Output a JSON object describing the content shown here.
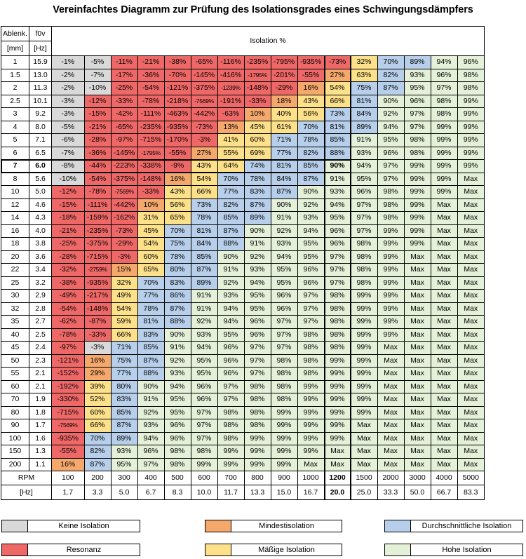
{
  "title": "Vereinfachtes Diagramm zur Prüfung des Isolationsgrades eines Schwingungsdämpfers",
  "colors": {
    "grey": "#d9d9d9",
    "red": "#ef6868",
    "orange": "#f4a86c",
    "yellow": "#fde08a",
    "blue": "#b7cfea",
    "green": "#e4f0d8",
    "white": "#ffffff"
  },
  "header": {
    "col1_top": "Ablenk.",
    "col1_bottom": "[mm]",
    "col2_top": "f0v",
    "col2_bottom": "[Hz]",
    "isolation_label": "Isolation %"
  },
  "footer": {
    "rpm_label": "RPM",
    "hz_label": "[Hz]",
    "rpm": [
      "100",
      "200",
      "300",
      "400",
      "500",
      "600",
      "700",
      "800",
      "900",
      "1000",
      "1200",
      "1500",
      "2000",
      "3000",
      "4000",
      "5000"
    ],
    "hz": [
      "1.7",
      "3.3",
      "5.0",
      "6.7",
      "8.3",
      "10.0",
      "11.7",
      "13.3",
      "15.0",
      "16.7",
      "20.0",
      "25.0",
      "33.3",
      "50.0",
      "66.7",
      "83.3"
    ]
  },
  "legend": [
    {
      "label": "Keine Isolation",
      "color": "grey"
    },
    {
      "label": "Mindestisolation",
      "color": "orange"
    },
    {
      "label": "Durchschnittliche Isolation",
      "color": "blue"
    },
    {
      "label": "Resonanz",
      "color": "red"
    },
    {
      "label": "Mäßige Isolation",
      "color": "yellow"
    },
    {
      "label": "Hohe Isolation",
      "color": "green"
    }
  ],
  "chart_data": {
    "type": "table",
    "highlight_row": "7",
    "highlight_col": "1200",
    "rows": [
      {
        "defl": "1",
        "f0v": "15.9",
        "vals": [
          "-1%",
          "-5%",
          "-11%",
          "-21%",
          "-38%",
          "-65%",
          "-116%",
          "-235%",
          "-795%",
          "-935%",
          "-73%",
          "32%",
          "70%",
          "89%",
          "94%",
          "96%"
        ]
      },
      {
        "defl": "1.5",
        "f0v": "13.0",
        "vals": [
          "-2%",
          "-7%",
          "-17%",
          "-36%",
          "-70%",
          "-145%",
          "-416%",
          "-1795%",
          "-201%",
          "-55%",
          "27%",
          "63%",
          "82%",
          "93%",
          "96%",
          "98%"
        ]
      },
      {
        "defl": "2",
        "f0v": "11.3",
        "vals": [
          "-2%",
          "-10%",
          "-25%",
          "-54%",
          "-121%",
          "-375%",
          "-1239%",
          "-148%",
          "-29%",
          "16%",
          "54%",
          "75%",
          "87%",
          "95%",
          "97%",
          "98%"
        ]
      },
      {
        "defl": "2.5",
        "f0v": "10.1",
        "vals": [
          "-3%",
          "-12%",
          "-33%",
          "-78%",
          "-218%",
          "-7569%",
          "-191%",
          "-33%",
          "18%",
          "43%",
          "66%",
          "81%",
          "90%",
          "96%",
          "98%",
          "99%"
        ]
      },
      {
        "defl": "3",
        "f0v": "9.2",
        "vals": [
          "-3%",
          "-15%",
          "-42%",
          "-111%",
          "-463%",
          "-442%",
          "-63%",
          "10%",
          "40%",
          "56%",
          "73%",
          "84%",
          "92%",
          "97%",
          "98%",
          "99%"
        ]
      },
      {
        "defl": "4",
        "f0v": "8.0",
        "vals": [
          "-5%",
          "-21%",
          "-65%",
          "-235%",
          "-935%",
          "-73%",
          "13%",
          "45%",
          "61%",
          "70%",
          "81%",
          "89%",
          "94%",
          "97%",
          "99%",
          "99%"
        ]
      },
      {
        "defl": "5",
        "f0v": "7.1",
        "vals": [
          "-6%",
          "-28%",
          "-97%",
          "-715%",
          "-170%",
          "-3%",
          "41%",
          "60%",
          "71%",
          "78%",
          "85%",
          "91%",
          "95%",
          "98%",
          "99%",
          "99%"
        ]
      },
      {
        "defl": "6",
        "f0v": "6.5",
        "vals": [
          "-7%",
          "-36%",
          "-145%",
          "-1795%",
          "-55%",
          "27%",
          "55%",
          "69%",
          "77%",
          "82%",
          "88%",
          "93%",
          "96%",
          "98%",
          "99%",
          "99%"
        ]
      },
      {
        "defl": "7",
        "f0v": "6.0",
        "vals": [
          "-8%",
          "-44%",
          "-223%",
          "-338%",
          "-9%",
          "43%",
          "64%",
          "74%",
          "81%",
          "85%",
          "90%",
          "94%",
          "97%",
          "99%",
          "99%",
          "99%"
        ]
      },
      {
        "defl": "8",
        "f0v": "5.6",
        "vals": [
          "-10%",
          "-54%",
          "-375%",
          "-148%",
          "16%",
          "54%",
          "70%",
          "78%",
          "84%",
          "87%",
          "91%",
          "95%",
          "97%",
          "99%",
          "99%",
          "Max"
        ]
      },
      {
        "defl": "10",
        "f0v": "5.0",
        "vals": [
          "-12%",
          "-78%",
          "-7569%",
          "-33%",
          "43%",
          "66%",
          "77%",
          "83%",
          "87%",
          "90%",
          "93%",
          "96%",
          "98%",
          "99%",
          "99%",
          "Max"
        ]
      },
      {
        "defl": "12",
        "f0v": "4.6",
        "vals": [
          "-15%",
          "-111%",
          "-442%",
          "10%",
          "56%",
          "73%",
          "82%",
          "87%",
          "90%",
          "92%",
          "94%",
          "97%",
          "98%",
          "99%",
          "Max",
          "Max"
        ]
      },
      {
        "defl": "14",
        "f0v": "4.3",
        "vals": [
          "-18%",
          "-159%",
          "-162%",
          "31%",
          "65%",
          "78%",
          "85%",
          "89%",
          "91%",
          "93%",
          "95%",
          "97%",
          "98%",
          "99%",
          "Max",
          "Max"
        ]
      },
      {
        "defl": "16",
        "f0v": "4.0",
        "vals": [
          "-21%",
          "-235%",
          "-73%",
          "45%",
          "70%",
          "81%",
          "87%",
          "90%",
          "92%",
          "94%",
          "96%",
          "97%",
          "99%",
          "99%",
          "Max",
          "Max"
        ]
      },
      {
        "defl": "18",
        "f0v": "3.8",
        "vals": [
          "-25%",
          "-375%",
          "-29%",
          "54%",
          "75%",
          "84%",
          "88%",
          "91%",
          "93%",
          "95%",
          "96%",
          "98%",
          "99%",
          "99%",
          "Max",
          "Max"
        ]
      },
      {
        "defl": "20",
        "f0v": "3.6",
        "vals": [
          "-28%",
          "-715%",
          "-3%",
          "60%",
          "78%",
          "85%",
          "90%",
          "92%",
          "94%",
          "95%",
          "97%",
          "98%",
          "99%",
          "Max",
          "Max",
          "Max"
        ]
      },
      {
        "defl": "22",
        "f0v": "3.4",
        "vals": [
          "-32%",
          "-2759%",
          "15%",
          "65%",
          "80%",
          "87%",
          "91%",
          "93%",
          "95%",
          "96%",
          "97%",
          "98%",
          "99%",
          "Max",
          "Max",
          "Max"
        ]
      },
      {
        "defl": "25",
        "f0v": "3.2",
        "vals": [
          "-38%",
          "-935%",
          "32%",
          "70%",
          "83%",
          "89%",
          "92%",
          "94%",
          "95%",
          "96%",
          "97%",
          "98%",
          "99%",
          "Max",
          "Max",
          "Max"
        ]
      },
      {
        "defl": "30",
        "f0v": "2.9",
        "vals": [
          "-49%",
          "-217%",
          "49%",
          "77%",
          "86%",
          "91%",
          "93%",
          "95%",
          "96%",
          "97%",
          "98%",
          "99%",
          "99%",
          "Max",
          "Max",
          "Max"
        ]
      },
      {
        "defl": "32",
        "f0v": "2.8",
        "vals": [
          "-54%",
          "-148%",
          "54%",
          "78%",
          "87%",
          "91%",
          "94%",
          "95%",
          "96%",
          "97%",
          "98%",
          "99%",
          "99%",
          "Max",
          "Max",
          "Max"
        ]
      },
      {
        "defl": "35",
        "f0v": "2.7",
        "vals": [
          "-62%",
          "-87%",
          "59%",
          "81%",
          "88%",
          "92%",
          "94%",
          "96%",
          "97%",
          "97%",
          "98%",
          "99%",
          "99%",
          "Max",
          "Max",
          "Max"
        ]
      },
      {
        "defl": "40",
        "f0v": "2.5",
        "vals": [
          "-78%",
          "-33%",
          "66%",
          "83%",
          "90%",
          "93%",
          "95%",
          "96%",
          "97%",
          "98%",
          "98%",
          "99%",
          "99%",
          "Max",
          "Max",
          "Max"
        ]
      },
      {
        "defl": "45",
        "f0v": "2.4",
        "vals": [
          "-97%",
          "-3%",
          "71%",
          "85%",
          "91%",
          "94%",
          "96%",
          "97%",
          "97%",
          "98%",
          "98%",
          "99%",
          "Max",
          "Max",
          "Max",
          "Max"
        ]
      },
      {
        "defl": "50",
        "f0v": "2.3",
        "vals": [
          "-121%",
          "16%",
          "75%",
          "87%",
          "92%",
          "95%",
          "96%",
          "97%",
          "98%",
          "98%",
          "99%",
          "99%",
          "Max",
          "Max",
          "Max",
          "Max"
        ]
      },
      {
        "defl": "55",
        "f0v": "2.1",
        "vals": [
          "-152%",
          "29%",
          "77%",
          "88%",
          "93%",
          "95%",
          "96%",
          "97%",
          "98%",
          "98%",
          "99%",
          "99%",
          "Max",
          "Max",
          "Max",
          "Max"
        ]
      },
      {
        "defl": "60",
        "f0v": "2.1",
        "vals": [
          "-192%",
          "39%",
          "80%",
          "90%",
          "94%",
          "96%",
          "97%",
          "98%",
          "98%",
          "99%",
          "99%",
          "99%",
          "Max",
          "Max",
          "Max",
          "Max"
        ]
      },
      {
        "defl": "70",
        "f0v": "1.9",
        "vals": [
          "-330%",
          "52%",
          "83%",
          "91%",
          "95%",
          "96%",
          "97%",
          "98%",
          "98%",
          "99%",
          "99%",
          "99%",
          "Max",
          "Max",
          "Max",
          "Max"
        ]
      },
      {
        "defl": "80",
        "f0v": "1.8",
        "vals": [
          "-715%",
          "60%",
          "85%",
          "92%",
          "95%",
          "97%",
          "98%",
          "98%",
          "99%",
          "99%",
          "99%",
          "99%",
          "Max",
          "Max",
          "Max",
          "Max"
        ]
      },
      {
        "defl": "90",
        "f0v": "1.7",
        "vals": [
          "-7569%",
          "66%",
          "87%",
          "93%",
          "96%",
          "97%",
          "98%",
          "98%",
          "99%",
          "99%",
          "99%",
          "Max",
          "Max",
          "Max",
          "Max",
          "Max"
        ]
      },
      {
        "defl": "100",
        "f0v": "1.6",
        "vals": [
          "-935%",
          "70%",
          "89%",
          "94%",
          "96%",
          "97%",
          "98%",
          "99%",
          "99%",
          "99%",
          "99%",
          "Max",
          "Max",
          "Max",
          "Max",
          "Max"
        ]
      },
      {
        "defl": "150",
        "f0v": "1.3",
        "vals": [
          "-55%",
          "82%",
          "93%",
          "96%",
          "98%",
          "98%",
          "99%",
          "99%",
          "99%",
          "99%",
          "Max",
          "Max",
          "Max",
          "Max",
          "Max",
          "Max"
        ]
      },
      {
        "defl": "200",
        "f0v": "1.1",
        "vals": [
          "16%",
          "87%",
          "95%",
          "97%",
          "98%",
          "99%",
          "99%",
          "99%",
          "99%",
          "Max",
          "Max",
          "Max",
          "Max",
          "Max",
          "Max",
          "Max"
        ]
      }
    ]
  }
}
